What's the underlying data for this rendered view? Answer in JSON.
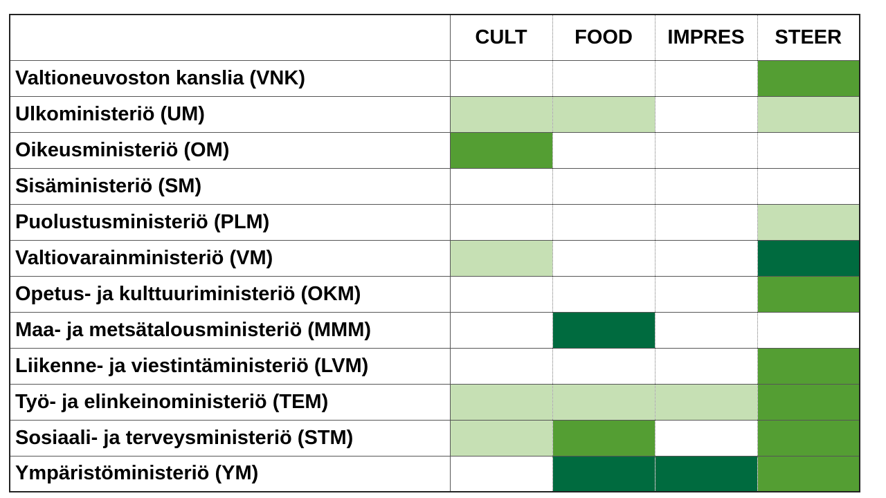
{
  "legend_colors": {
    "none": "#ffffff",
    "low": "#c6e0b4",
    "medium": "#549e33",
    "high": "#006b3f"
  },
  "table": {
    "corner": "",
    "columns": [
      "CULT",
      "FOOD",
      "IMPRES",
      "STEER"
    ],
    "rows": [
      {
        "label": "Valtioneuvoston kanslia (VNK)",
        "levels": [
          "none",
          "none",
          "none",
          "medium"
        ]
      },
      {
        "label": "Ulkoministeriö (UM)",
        "levels": [
          "low",
          "low",
          "none",
          "low"
        ]
      },
      {
        "label": "Oikeusministeriö (OM)",
        "levels": [
          "medium",
          "none",
          "none",
          "none"
        ]
      },
      {
        "label": "Sisäministeriö (SM)",
        "levels": [
          "none",
          "none",
          "none",
          "none"
        ]
      },
      {
        "label": "Puolustusministeriö (PLM)",
        "levels": [
          "none",
          "none",
          "none",
          "low"
        ]
      },
      {
        "label": "Valtiovarainministeriö (VM)",
        "levels": [
          "low",
          "none",
          "none",
          "high"
        ]
      },
      {
        "label": "Opetus- ja kulttuuriministeriö (OKM)",
        "levels": [
          "none",
          "none",
          "none",
          "medium"
        ]
      },
      {
        "label": "Maa- ja metsätalousministeriö (MMM)",
        "levels": [
          "none",
          "high",
          "none",
          "none"
        ]
      },
      {
        "label": "Liikenne- ja viestintäministeriö (LVM)",
        "levels": [
          "none",
          "none",
          "none",
          "medium"
        ]
      },
      {
        "label": "Työ- ja elinkeinoministeriö (TEM)",
        "levels": [
          "low",
          "low",
          "low",
          "medium"
        ]
      },
      {
        "label": "Sosiaali- ja terveysministeriö (STM)",
        "levels": [
          "low",
          "medium",
          "none",
          "medium"
        ]
      },
      {
        "label": "Ympäristöministeriö (YM)",
        "levels": [
          "none",
          "high",
          "high",
          "medium"
        ]
      }
    ]
  }
}
